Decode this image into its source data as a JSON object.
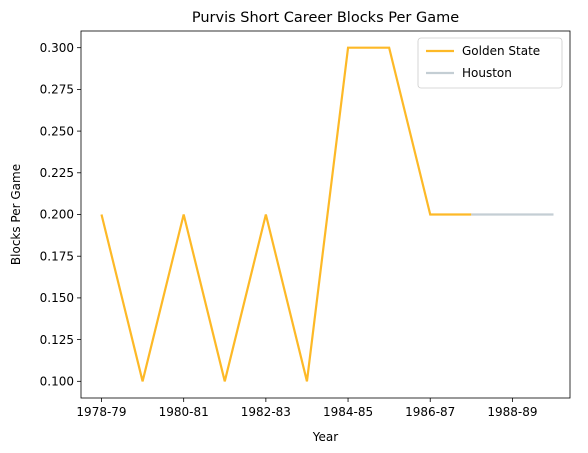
{
  "chart_data": {
    "type": "line",
    "title": "Purvis Short Career Blocks Per Game",
    "xlabel": "Year",
    "ylabel": "Blocks Per Game",
    "x": [
      "1978-79",
      "1979-80",
      "1980-81",
      "1981-82",
      "1982-83",
      "1983-84",
      "1984-85",
      "1985-86",
      "1986-87",
      "1987-88",
      "1988-89",
      "1989-90"
    ],
    "x_tick_labels": [
      "1978-79",
      "1980-81",
      "1982-83",
      "1984-85",
      "1986-87",
      "1988-89"
    ],
    "y_ticks": [
      "0.100",
      "0.125",
      "0.150",
      "0.175",
      "0.200",
      "0.225",
      "0.250",
      "0.275",
      "0.300"
    ],
    "ylim": [
      0.09,
      0.31
    ],
    "legend_position": "upper-right",
    "grid": false,
    "series": [
      {
        "name": "Golden State",
        "color": "#FDB927",
        "x": [
          "1978-79",
          "1979-80",
          "1980-81",
          "1981-82",
          "1982-83",
          "1983-84",
          "1984-85",
          "1985-86",
          "1986-87",
          "1987-88"
        ],
        "values": [
          0.2,
          0.1,
          0.2,
          0.1,
          0.2,
          0.1,
          0.3,
          0.3,
          0.2,
          0.2
        ]
      },
      {
        "name": "Houston",
        "color": "#C4CED4",
        "x": [
          "1987-88",
          "1988-89",
          "1989-90"
        ],
        "values": [
          0.2,
          0.2,
          0.2
        ]
      }
    ]
  }
}
